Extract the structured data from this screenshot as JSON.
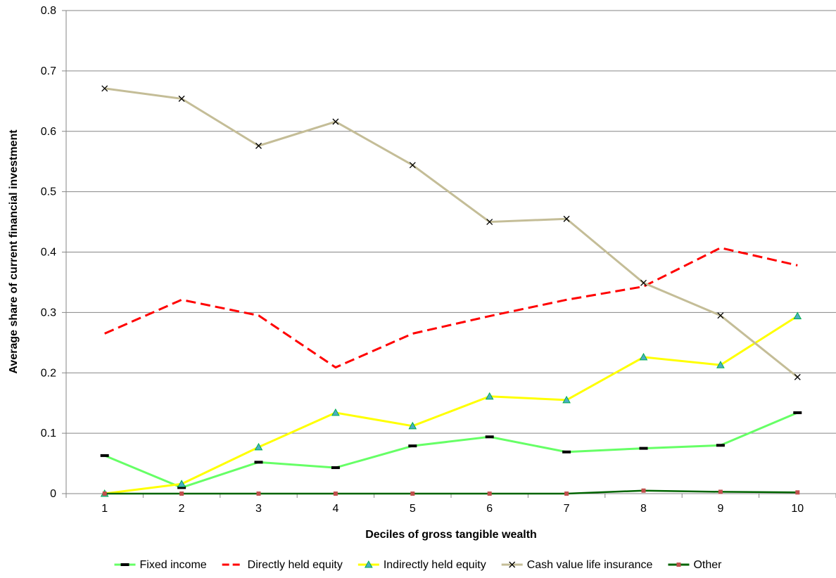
{
  "chart_data": {
    "type": "line",
    "title": "",
    "xlabel": "Deciles of gross tangible wealth",
    "ylabel": "Average share of current financial investment",
    "x": [
      1,
      2,
      3,
      4,
      5,
      6,
      7,
      8,
      9,
      10
    ],
    "x_tick_labels": [
      "1",
      "2",
      "3",
      "4",
      "5",
      "6",
      "7",
      "8",
      "9",
      "10"
    ],
    "ylim": [
      0,
      0.8
    ],
    "y_ticks": [
      0,
      0.1,
      0.2,
      0.3,
      0.4,
      0.5,
      0.6,
      0.7,
      0.8
    ],
    "y_tick_labels": [
      "0",
      "0.1",
      "0.2",
      "0.3",
      "0.4",
      "0.5",
      "0.6",
      "0.7",
      "0.8"
    ],
    "grid": "horizontal",
    "legend_position": "bottom",
    "series": [
      {
        "name": "Fixed income",
        "values": [
          0.063,
          0.01,
          0.052,
          0.043,
          0.079,
          0.094,
          0.069,
          0.075,
          0.08,
          0.134
        ],
        "color": "#66ff66",
        "marker": "dash",
        "marker_color": "#000000",
        "dashed": false
      },
      {
        "name": "Directly held equity",
        "values": [
          0.265,
          0.321,
          0.295,
          0.209,
          0.265,
          0.294,
          0.321,
          0.343,
          0.407,
          0.378
        ],
        "color": "#ff0000",
        "marker": "none",
        "dashed": true
      },
      {
        "name": "Indirectly held equity",
        "values": [
          0.0,
          0.016,
          0.077,
          0.134,
          0.112,
          0.161,
          0.155,
          0.226,
          0.213,
          0.294
        ],
        "color": "#ffff00",
        "marker": "triangle",
        "marker_color": "#00b050",
        "dashed": false
      },
      {
        "name": "Cash value life insurance",
        "values": [
          0.671,
          0.654,
          0.576,
          0.616,
          0.544,
          0.45,
          0.455,
          0.349,
          0.295,
          0.193
        ],
        "color": "#c4bd97",
        "marker": "x",
        "marker_color": "#000000",
        "dashed": false
      },
      {
        "name": "Other",
        "values": [
          0.0,
          0.0,
          0.0,
          0.0,
          0.0,
          0.0,
          0.0,
          0.005,
          0.003,
          0.002
        ],
        "color": "#006400",
        "marker": "square",
        "marker_color": "#c0504d",
        "dashed": false
      }
    ]
  }
}
